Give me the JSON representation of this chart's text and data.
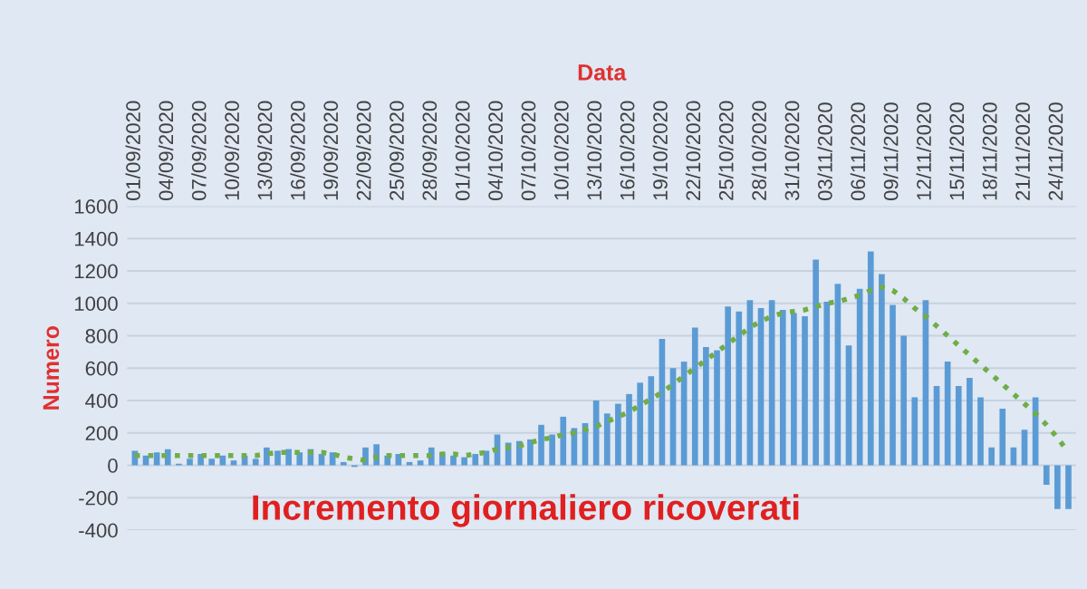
{
  "chart_data": {
    "type": "bar",
    "xlabel": "Data",
    "ylabel": "Numero",
    "annotations": [
      "Incremento giornaliero ricoverati"
    ],
    "categories": [
      "01/09/2020",
      null,
      null,
      "04/09/2020",
      null,
      null,
      "07/09/2020",
      null,
      null,
      "10/09/2020",
      null,
      null,
      "13/09/2020",
      null,
      null,
      "16/09/2020",
      null,
      null,
      "19/09/2020",
      null,
      null,
      "22/09/2020",
      null,
      null,
      "25/09/2020",
      null,
      null,
      "28/09/2020",
      null,
      null,
      "01/10/2020",
      null,
      null,
      "04/10/2020",
      null,
      null,
      "07/10/2020",
      null,
      null,
      "10/10/2020",
      null,
      null,
      "13/10/2020",
      null,
      null,
      "16/10/2020",
      null,
      null,
      "19/10/2020",
      null,
      null,
      "22/10/2020",
      null,
      null,
      "25/10/2020",
      null,
      null,
      "28/10/2020",
      null,
      null,
      "31/10/2020",
      null,
      null,
      "03/11/2020",
      null,
      null,
      "06/11/2020",
      null,
      null,
      "09/11/2020",
      null,
      null,
      "12/11/2020",
      null,
      null,
      "15/11/2020",
      null,
      null,
      "18/11/2020",
      null,
      null,
      "21/11/2020",
      null,
      null,
      "24/11/2020",
      null
    ],
    "series": [
      {
        "color": "#5b9bd5",
        "values": [
          90,
          60,
          80,
          100,
          10,
          40,
          70,
          40,
          60,
          30,
          60,
          40,
          110,
          90,
          100,
          80,
          100,
          70,
          80,
          20,
          -10,
          110,
          130,
          60,
          70,
          20,
          30,
          110,
          80,
          60,
          50,
          70,
          90,
          190,
          140,
          150,
          160,
          250,
          190,
          300,
          230,
          260,
          400,
          320,
          380,
          440,
          510,
          550,
          780,
          600,
          640,
          850,
          730,
          710,
          980,
          950,
          1020,
          970,
          1020,
          960,
          940,
          920,
          1270,
          1010,
          1120,
          740,
          1090,
          1320,
          1180,
          990,
          800,
          420,
          1020,
          490,
          640,
          490,
          540,
          420,
          110,
          350,
          110,
          220,
          420,
          -120,
          -270,
          -270
        ]
      },
      {
        "type": "line",
        "color": "#70ad47",
        "line_style": "dotted",
        "values": [
          60,
          60,
          60,
          60,
          60,
          60,
          60,
          60,
          60,
          60,
          60,
          60,
          70,
          80,
          80,
          80,
          80,
          80,
          70,
          50,
          40,
          30,
          50,
          60,
          60,
          60,
          60,
          60,
          70,
          70,
          60,
          70,
          80,
          100,
          110,
          120,
          140,
          160,
          170,
          190,
          200,
          220,
          240,
          270,
          300,
          330,
          370,
          410,
          450,
          500,
          550,
          600,
          650,
          700,
          750,
          800,
          850,
          890,
          920,
          940,
          950,
          960,
          980,
          1000,
          1010,
          1030,
          1050,
          1080,
          1100,
          1080,
          1030,
          970,
          920,
          860,
          800,
          740,
          680,
          620,
          560,
          500,
          440,
          380,
          320,
          250,
          170,
          80
        ]
      }
    ],
    "ylim": [
      -400,
      1600
    ],
    "yticks": [
      -400,
      -200,
      0,
      200,
      400,
      600,
      800,
      1000,
      1200,
      1400,
      1600
    ],
    "grid": "y",
    "legend": false
  }
}
